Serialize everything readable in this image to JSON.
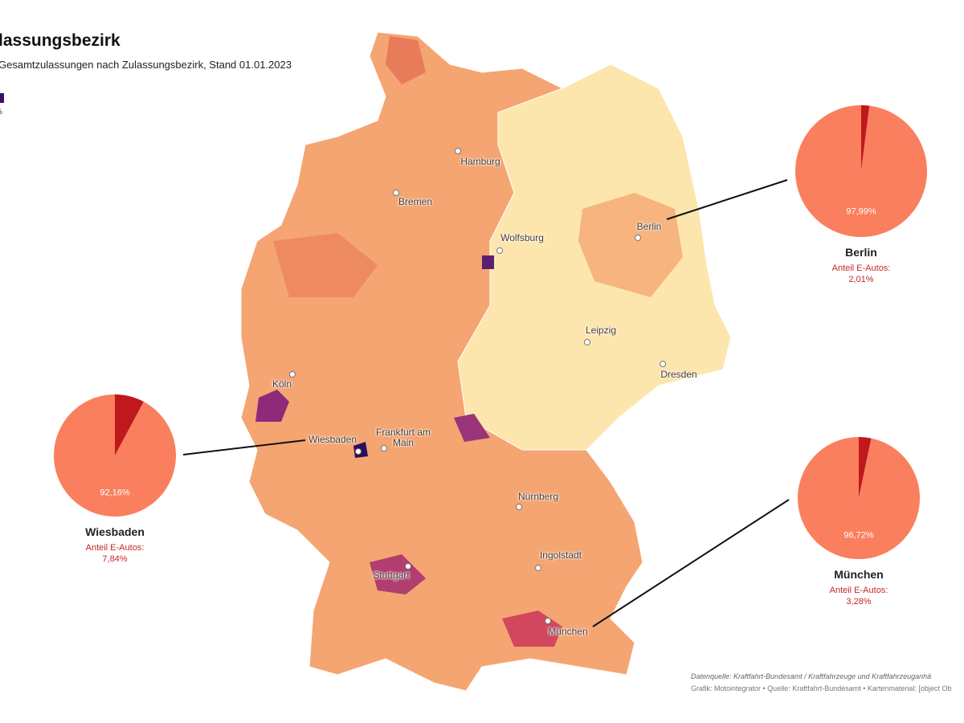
{
  "header": {
    "title": "lassungsbezirk",
    "subtitle": "Gesamtzulassungen nach Zulassungsbezirk, Stand 01.01.2023",
    "legend_label": "%"
  },
  "cities": [
    "Hamburg",
    "Bremen",
    "Wolfsburg",
    "Berlin",
    "Leipzig",
    "Dresden",
    "Köln",
    "Wiesbaden",
    "Frankfurt am Main",
    "Nürnberg",
    "Ingolstadt",
    "Stuttgart",
    "München"
  ],
  "chart_data": [
    {
      "type": "pie",
      "title": "Berlin",
      "subtitle": "Anteil E-Autos:",
      "values": [
        97.99,
        2.01
      ],
      "value_labels": [
        "97,99%",
        "2,01%"
      ],
      "colors": [
        "#fa7f5e",
        "#c0181d"
      ]
    },
    {
      "type": "pie",
      "title": "Wiesbaden",
      "subtitle": "Anteil E-Autos:",
      "values": [
        92.16,
        7.84
      ],
      "value_labels": [
        "92,16%",
        "7,84%"
      ],
      "colors": [
        "#fa7f5e",
        "#c0181d"
      ]
    },
    {
      "type": "pie",
      "title": "München",
      "subtitle": "Anteil E-Autos:",
      "values": [
        96.72,
        3.28
      ],
      "value_labels": [
        "96,72%",
        "3,28%"
      ],
      "colors": [
        "#fa7f5e",
        "#c0181d"
      ]
    }
  ],
  "footer": {
    "source": "Datenquelle: Kraftfahrt-Bundesamt / Kraftfahrzeuge und Kraftfahrzeuganhä",
    "credit": "Grafik: Motointegrator • Quelle: Kraftfahrt-Bundesamt • Kartenmaterial: [object Ob"
  }
}
